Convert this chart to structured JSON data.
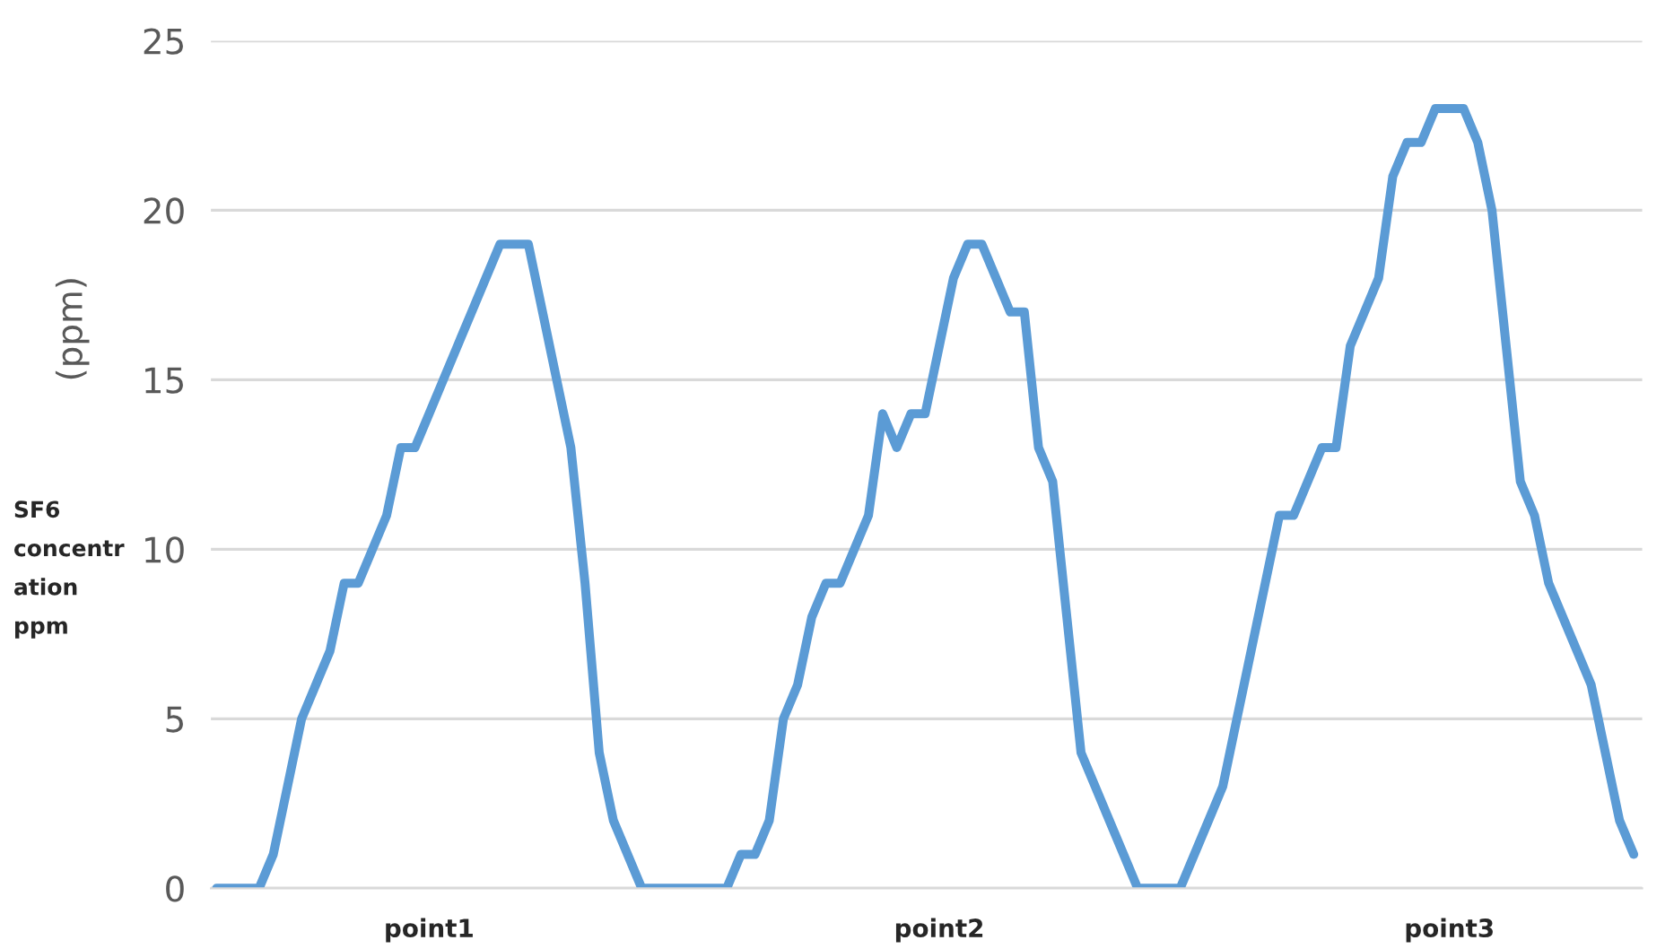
{
  "chart_data": {
    "type": "line",
    "ylabel": "(ppm)",
    "annotations": [
      "SF6\nconcentr\nation\nppm"
    ],
    "categories": [
      null,
      null,
      null,
      null,
      null,
      null,
      null,
      null,
      null,
      null,
      null,
      null,
      null,
      null,
      null,
      "point1",
      null,
      null,
      null,
      null,
      null,
      null,
      null,
      null,
      null,
      null,
      null,
      null,
      null,
      null,
      null,
      null,
      null,
      null,
      null,
      null,
      null,
      null,
      null,
      null,
      null,
      null,
      null,
      null,
      null,
      null,
      null,
      null,
      null,
      null,
      null,
      "point2",
      null,
      null,
      null,
      null,
      null,
      null,
      null,
      null,
      null,
      null,
      null,
      null,
      null,
      null,
      null,
      null,
      null,
      null,
      null,
      null,
      null,
      null,
      null,
      null,
      null,
      null,
      null,
      null,
      null,
      null,
      null,
      null,
      null,
      null,
      null,
      "point3",
      null,
      null,
      null,
      null,
      null,
      null,
      null,
      null,
      null,
      null,
      null,
      null,
      null
    ],
    "series": [
      {
        "color": "#5b9bd5",
        "values": [
          0,
          0,
          0,
          0,
          1,
          3,
          5,
          6,
          7,
          9,
          9,
          10,
          11,
          13,
          13,
          14,
          15,
          16,
          17,
          18,
          19,
          19,
          19,
          17,
          15,
          13,
          9,
          4,
          2,
          1,
          0,
          0,
          0,
          0,
          0,
          0,
          0,
          1,
          1,
          2,
          5,
          6,
          8,
          9,
          9,
          10,
          11,
          14,
          13,
          14,
          14,
          16,
          18,
          19,
          19,
          18,
          17,
          17,
          13,
          12,
          8,
          4,
          3,
          2,
          1,
          0,
          0,
          0,
          0,
          1,
          2,
          3,
          5,
          7,
          9,
          11,
          11,
          12,
          13,
          13,
          16,
          17,
          18,
          21,
          22,
          22,
          23,
          23,
          23,
          22,
          20,
          16,
          12,
          11,
          9,
          8,
          7,
          6,
          4,
          2,
          1
        ]
      }
    ],
    "ylim": [
      0,
      25
    ],
    "yticks": [
      0,
      5,
      10,
      15,
      20,
      25
    ],
    "grid": "y",
    "marker": "none",
    "line_style": "solid",
    "legend": false
  }
}
